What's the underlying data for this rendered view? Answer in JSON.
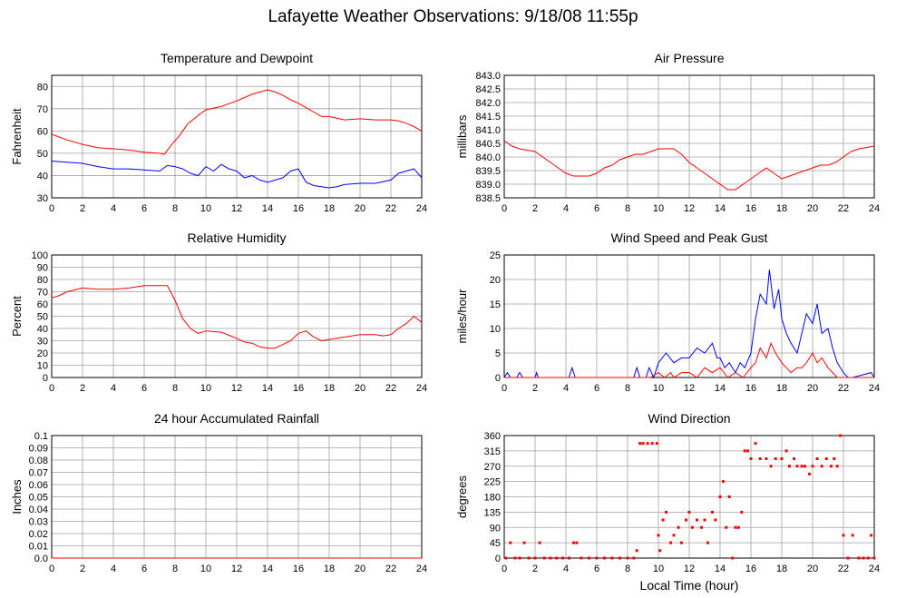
{
  "title": "Lafayette Weather Observations: 9/18/08 11:55p",
  "colors": {
    "red": "#ff0000",
    "blue": "#0000ff",
    "grid": "#a0a0a0"
  },
  "chart_data": [
    {
      "id": "temp",
      "type": "line",
      "title": "Temperature and Dewpoint",
      "xlabel": "",
      "ylabel": "Fahrenheit",
      "xlim": [
        0,
        24
      ],
      "ylim": [
        30,
        85
      ],
      "xticks": [
        0,
        2,
        4,
        6,
        8,
        10,
        12,
        14,
        16,
        18,
        20,
        22,
        24
      ],
      "yticks": [
        30,
        40,
        50,
        60,
        70,
        80
      ],
      "ytick_labels": [
        "30",
        "40",
        "50",
        "60",
        "70",
        "80"
      ],
      "grid": true,
      "series": [
        {
          "color": "#ff0000",
          "x": [
            0,
            1,
            2,
            3,
            4,
            5,
            6,
            7,
            7.3,
            7.8,
            8.3,
            8.8,
            9.5,
            10,
            11,
            12,
            12.5,
            13,
            13.5,
            14,
            14.5,
            15,
            15.5,
            16,
            16.5,
            17,
            17.5,
            18,
            19,
            20,
            21,
            22,
            22.5,
            23,
            23.5,
            24
          ],
          "y": [
            58.5,
            56,
            54,
            52.5,
            52,
            51.5,
            50.5,
            50,
            49.5,
            54,
            58,
            63,
            67,
            69.5,
            71,
            73.5,
            75,
            76.5,
            77.5,
            78.5,
            77.5,
            76,
            74,
            72.5,
            70.5,
            68.5,
            66.5,
            66.5,
            65,
            65.5,
            65,
            65,
            64.5,
            63.5,
            62,
            60
          ]
        },
        {
          "color": "#0000ff",
          "x": [
            0,
            1,
            2,
            3,
            4,
            5,
            6,
            7,
            7.5,
            8,
            8.5,
            9,
            9.5,
            10,
            10.5,
            11,
            11.5,
            12,
            12.5,
            13,
            13.5,
            14,
            14.5,
            15,
            15.5,
            16,
            16.5,
            17,
            17.5,
            18,
            18.5,
            19,
            20,
            21,
            22,
            22.5,
            23,
            23.5,
            24
          ],
          "y": [
            46.5,
            46,
            45.5,
            44,
            43,
            43,
            42.5,
            42,
            44.5,
            44,
            43,
            41,
            40,
            44,
            42,
            45,
            43,
            42,
            39,
            40,
            38,
            37,
            38,
            39,
            42,
            43,
            37,
            35.5,
            35,
            34.5,
            35,
            36,
            36.5,
            36.5,
            38,
            41,
            42,
            43,
            39
          ]
        }
      ]
    },
    {
      "id": "pressure",
      "type": "line",
      "title": "Air Pressure",
      "xlabel": "",
      "ylabel": "millibars",
      "xlim": [
        0,
        24
      ],
      "ylim": [
        838.5,
        843.0
      ],
      "xticks": [
        0,
        2,
        4,
        6,
        8,
        10,
        12,
        14,
        16,
        18,
        20,
        22,
        24
      ],
      "yticks": [
        838.5,
        839.0,
        839.5,
        840.0,
        840.5,
        841.0,
        841.5,
        842.0,
        842.5,
        843.0
      ],
      "ytick_labels": [
        "838.5",
        "839.0",
        "839.5",
        "840.0",
        "840.5",
        "841.0",
        "841.5",
        "842.0",
        "842.5",
        "843.0"
      ],
      "grid": true,
      "series": [
        {
          "color": "#ff0000",
          "x": [
            0,
            0.5,
            1,
            2,
            2.5,
            3,
            3.5,
            4,
            4.5,
            5,
            5.5,
            6,
            6.5,
            7,
            7.5,
            8,
            8.5,
            9,
            9.5,
            10,
            10.5,
            11,
            11.5,
            12,
            12.5,
            13,
            13.5,
            14,
            14.5,
            15,
            15.5,
            16,
            16.5,
            17,
            17.5,
            18,
            18.5,
            19,
            19.5,
            20,
            20.5,
            21,
            21.5,
            22,
            22.5,
            23,
            24
          ],
          "y": [
            840.6,
            840.4,
            840.3,
            840.2,
            840.0,
            839.8,
            839.6,
            839.4,
            839.3,
            839.3,
            839.3,
            839.4,
            839.6,
            839.7,
            839.9,
            840.0,
            840.1,
            840.1,
            840.2,
            840.3,
            840.3,
            840.3,
            840.1,
            839.8,
            839.6,
            839.4,
            839.2,
            839.0,
            838.8,
            838.8,
            839.0,
            839.2,
            839.4,
            839.6,
            839.4,
            839.2,
            839.3,
            839.4,
            839.5,
            839.6,
            839.7,
            839.7,
            839.8,
            840.0,
            840.2,
            840.3,
            840.4
          ]
        }
      ]
    },
    {
      "id": "humidity",
      "type": "line",
      "title": "Relative Humidity",
      "xlabel": "",
      "ylabel": "Percent",
      "xlim": [
        0,
        24
      ],
      "ylim": [
        0,
        100
      ],
      "xticks": [
        0,
        2,
        4,
        6,
        8,
        10,
        12,
        14,
        16,
        18,
        20,
        22,
        24
      ],
      "yticks": [
        0,
        10,
        20,
        30,
        40,
        50,
        60,
        70,
        80,
        90,
        100
      ],
      "ytick_labels": [
        "0",
        "10",
        "20",
        "30",
        "40",
        "50",
        "60",
        "70",
        "80",
        "90",
        "100"
      ],
      "grid": true,
      "series": [
        {
          "color": "#ff0000",
          "x": [
            0,
            0.5,
            1,
            2,
            3,
            4,
            5,
            6,
            7,
            7.5,
            8,
            8.5,
            9,
            9.5,
            10,
            11,
            12,
            12.5,
            13,
            13.5,
            14,
            14.5,
            15,
            15.5,
            16,
            16.5,
            17,
            17.5,
            18,
            19,
            20,
            21,
            21.5,
            22,
            22.5,
            23,
            23.5,
            24
          ],
          "y": [
            65,
            67,
            70,
            73,
            72,
            72,
            73,
            75,
            75,
            75,
            63,
            48,
            40,
            36,
            38,
            37,
            32,
            29,
            28,
            25,
            24,
            24,
            27,
            30,
            36,
            38,
            33,
            30,
            31,
            33,
            35,
            35,
            34,
            35,
            40,
            44,
            50,
            45
          ]
        }
      ]
    },
    {
      "id": "wind",
      "type": "line",
      "title": "Wind Speed and Peak Gust",
      "xlabel": "",
      "ylabel": "miles/hour",
      "xlim": [
        0,
        24
      ],
      "ylim": [
        0,
        25
      ],
      "xticks": [
        0,
        2,
        4,
        6,
        8,
        10,
        12,
        14,
        16,
        18,
        20,
        22,
        24
      ],
      "yticks": [
        0,
        5,
        10,
        15,
        20,
        25
      ],
      "ytick_labels": [
        "0",
        "5",
        "10",
        "15",
        "20",
        "25"
      ],
      "grid": true,
      "series": [
        {
          "color": "#0000ff",
          "x": [
            0,
            0.2,
            0.4,
            0.8,
            1,
            1.2,
            2,
            2.1,
            2.2,
            4.2,
            4.4,
            4.6,
            8.4,
            8.6,
            8.8,
            9.2,
            9.4,
            9.7,
            10,
            10.5,
            11,
            11.5,
            12,
            12.5,
            13,
            13.5,
            13.8,
            14,
            14.3,
            14.6,
            15,
            15.3,
            15.6,
            16,
            16.3,
            16.6,
            17,
            17.2,
            17.5,
            17.8,
            18,
            18.3,
            18.6,
            19,
            19.3,
            19.6,
            20,
            20.3,
            20.6,
            21,
            21.3,
            21.6,
            22,
            22.3,
            22.6,
            23.8,
            24
          ],
          "y": [
            0,
            1,
            0,
            0,
            1,
            0,
            0,
            1,
            0,
            0,
            2,
            0,
            0,
            2,
            0,
            0,
            2,
            0,
            3,
            5,
            3,
            4,
            4,
            6,
            5,
            7,
            4,
            4,
            2,
            3,
            1,
            3,
            2,
            5,
            12,
            17,
            15,
            22,
            14,
            18,
            12,
            9,
            7,
            5,
            9,
            13,
            11,
            15,
            9,
            10,
            6,
            3,
            1,
            0,
            0,
            1,
            0
          ]
        },
        {
          "color": "#ff0000",
          "x": [
            0,
            9.5,
            10,
            10.4,
            10.8,
            11,
            11.5,
            12,
            12.5,
            13,
            13.5,
            14,
            14.5,
            15,
            15.5,
            16,
            16.3,
            16.6,
            17,
            17.3,
            17.6,
            18,
            18.3,
            18.6,
            19,
            19.3,
            19.6,
            20,
            20.3,
            20.6,
            21,
            21.3,
            21.6,
            22,
            24
          ],
          "y": [
            0,
            0,
            1,
            0,
            1,
            0,
            1,
            1,
            0,
            2,
            1,
            2,
            0,
            1,
            0,
            2,
            3,
            6,
            4,
            7,
            5,
            3,
            2,
            1,
            2,
            2,
            3,
            5,
            3,
            4,
            2,
            1,
            0,
            0,
            0
          ]
        }
      ]
    },
    {
      "id": "rain",
      "type": "line",
      "title": "24 hour Accumulated Rainfall",
      "xlabel": "",
      "ylabel": "Inches",
      "xlim": [
        0,
        24
      ],
      "ylim": [
        0,
        0.1
      ],
      "xticks": [
        0,
        2,
        4,
        6,
        8,
        10,
        12,
        14,
        16,
        18,
        20,
        22,
        24
      ],
      "yticks": [
        0,
        0.01,
        0.02,
        0.03,
        0.04,
        0.05,
        0.06,
        0.07,
        0.08,
        0.09,
        0.1
      ],
      "ytick_labels": [
        "0.0",
        "0.01",
        "0.02",
        "0.03",
        "0.04",
        "0.05",
        "0.06",
        "0.07",
        "0.08",
        "0.09",
        "0.1"
      ],
      "grid": true,
      "series": [
        {
          "color": "#ff0000",
          "x": [
            0,
            24
          ],
          "y": [
            0,
            0
          ]
        }
      ]
    },
    {
      "id": "direction",
      "type": "scatter",
      "title": "Wind Direction",
      "xlabel": "Local Time (hour)",
      "ylabel": "degrees",
      "xlim": [
        0,
        24
      ],
      "ylim": [
        0,
        360
      ],
      "xticks": [
        0,
        2,
        4,
        6,
        8,
        10,
        12,
        14,
        16,
        18,
        20,
        22,
        24
      ],
      "yticks": [
        0,
        45,
        90,
        135,
        180,
        225,
        270,
        315,
        360
      ],
      "ytick_labels": [
        "0",
        "45",
        "90",
        "135",
        "180",
        "225",
        "270",
        "315",
        "360"
      ],
      "grid": true,
      "series": [
        {
          "color": "#ff0000",
          "x": [
            0.1,
            0.4,
            0.7,
            1.0,
            1.3,
            1.6,
            2.0,
            2.3,
            2.6,
            3.0,
            3.4,
            3.8,
            4.2,
            4.5,
            4.7,
            5.0,
            5.5,
            6.0,
            6.5,
            7.0,
            7.5,
            8.0,
            8.4,
            8.6,
            8.8,
            9.0,
            9.3,
            9.6,
            9.9,
            10.0,
            10.1,
            10.3,
            10.5,
            10.8,
            11.0,
            11.3,
            11.5,
            11.8,
            12.0,
            12.2,
            12.5,
            12.8,
            13.0,
            13.2,
            13.5,
            13.7,
            14.0,
            14.2,
            14.4,
            14.6,
            14.8,
            15.0,
            15.2,
            15.4,
            15.6,
            15.8,
            16.0,
            16.3,
            16.6,
            17.0,
            17.3,
            17.6,
            18.0,
            18.3,
            18.5,
            18.8,
            19.0,
            19.3,
            19.5,
            19.8,
            20.0,
            20.3,
            20.6,
            20.9,
            21.2,
            21.4,
            21.6,
            21.8,
            22.0,
            22.3,
            22.6,
            23.0,
            23.3,
            23.6,
            23.8,
            24.0
          ],
          "y": [
            0,
            45,
            0,
            0,
            45,
            0,
            0,
            45,
            0,
            0,
            0,
            0,
            0,
            45,
            45,
            0,
            0,
            0,
            0,
            0,
            0,
            0,
            0,
            22,
            337,
            337,
            337,
            337,
            337,
            67,
            22,
            112,
            135,
            45,
            67,
            90,
            45,
            112,
            135,
            90,
            112,
            90,
            112,
            45,
            135,
            112,
            180,
            225,
            90,
            180,
            0,
            90,
            90,
            135,
            315,
            315,
            292,
            337,
            292,
            292,
            270,
            292,
            292,
            315,
            270,
            292,
            270,
            270,
            270,
            247,
            270,
            292,
            270,
            292,
            270,
            292,
            270,
            360,
            67,
            0,
            67,
            0,
            0,
            0,
            67,
            0
          ]
        }
      ]
    }
  ]
}
